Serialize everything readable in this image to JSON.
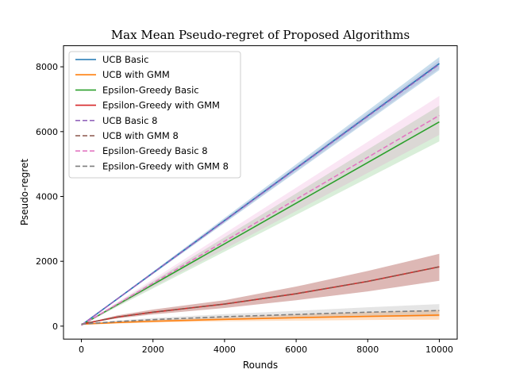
{
  "chart_data": {
    "type": "line",
    "title": "Max Mean Pseudo-regret of Proposed Algorithms",
    "xlabel": "Rounds",
    "ylabel": "Pseudo-regret",
    "xlim": [
      -500,
      10500
    ],
    "ylim": [
      -400,
      8650
    ],
    "xticks": [
      0,
      2000,
      4000,
      6000,
      8000,
      10000
    ],
    "yticks": [
      0,
      2000,
      4000,
      6000,
      8000
    ],
    "grid": false,
    "legend_position": "top-left",
    "series": [
      {
        "name": "UCB Basic",
        "color": "#1f77b4",
        "dashed": false,
        "x": [
          0,
          10000
        ],
        "y": [
          30,
          8100
        ],
        "band": [
          30,
          8300
        ],
        "band_low": [
          30,
          7900
        ],
        "band_alpha": 0.25
      },
      {
        "name": "UCB with GMM",
        "color": "#ff7f0e",
        "dashed": false,
        "x": [
          0,
          1000,
          2000,
          4000,
          6000,
          8000,
          10000
        ],
        "y": [
          60,
          110,
          150,
          210,
          260,
          300,
          340
        ],
        "band": [
          80,
          140,
          190,
          280,
          360,
          430,
          500
        ],
        "band_low": [
          40,
          80,
          110,
          150,
          170,
          190,
          200
        ],
        "band_alpha": 0.25
      },
      {
        "name": "Epsilon-Greedy Basic",
        "color": "#2ca02c",
        "dashed": false,
        "x": [
          0,
          10000
        ],
        "y": [
          30,
          6300
        ],
        "band": [
          30,
          6800
        ],
        "band_low": [
          30,
          5700
        ],
        "band_alpha": 0.18
      },
      {
        "name": "Epsilon-Greedy with GMM",
        "color": "#d62728",
        "dashed": false,
        "x": [
          0,
          1000,
          2000,
          4000,
          6000,
          8000,
          10000
        ],
        "y": [
          60,
          280,
          430,
          680,
          1000,
          1380,
          1830
        ],
        "band": [
          60,
          330,
          510,
          800,
          1220,
          1700,
          2230
        ],
        "band_low": [
          60,
          240,
          360,
          560,
          800,
          1070,
          1400
        ],
        "band_alpha": 0.18
      },
      {
        "name": "UCB Basic 8",
        "color": "#9467bd",
        "dashed": true,
        "x": [
          0,
          10000
        ],
        "y": [
          30,
          8080
        ],
        "band": [
          30,
          8200
        ],
        "band_low": [
          30,
          7950
        ],
        "band_alpha": 0.15
      },
      {
        "name": "UCB with GMM 8",
        "color": "#8c564b",
        "dashed": true,
        "x": [
          0,
          1000,
          2000,
          4000,
          6000,
          8000,
          10000
        ],
        "y": [
          60,
          280,
          430,
          680,
          1000,
          1380,
          1830
        ],
        "band": [
          60,
          330,
          510,
          800,
          1220,
          1700,
          2230
        ],
        "band_low": [
          60,
          240,
          360,
          560,
          800,
          1070,
          1400
        ],
        "band_alpha": 0.25
      },
      {
        "name": "Epsilon-Greedy Basic 8",
        "color": "#e377c2",
        "dashed": true,
        "x": [
          0,
          10000
        ],
        "y": [
          30,
          6500
        ],
        "band": [
          30,
          7100
        ],
        "band_low": [
          30,
          5900
        ],
        "band_alpha": 0.18
      },
      {
        "name": "Epsilon-Greedy with GMM 8",
        "color": "#7f7f7f",
        "dashed": true,
        "x": [
          0,
          1000,
          2000,
          4000,
          6000,
          8000,
          10000
        ],
        "y": [
          60,
          140,
          200,
          290,
          360,
          430,
          480
        ],
        "band": [
          80,
          170,
          250,
          370,
          470,
          580,
          680
        ],
        "band_low": [
          50,
          110,
          150,
          210,
          250,
          280,
          300
        ],
        "band_alpha": 0.2
      }
    ]
  }
}
